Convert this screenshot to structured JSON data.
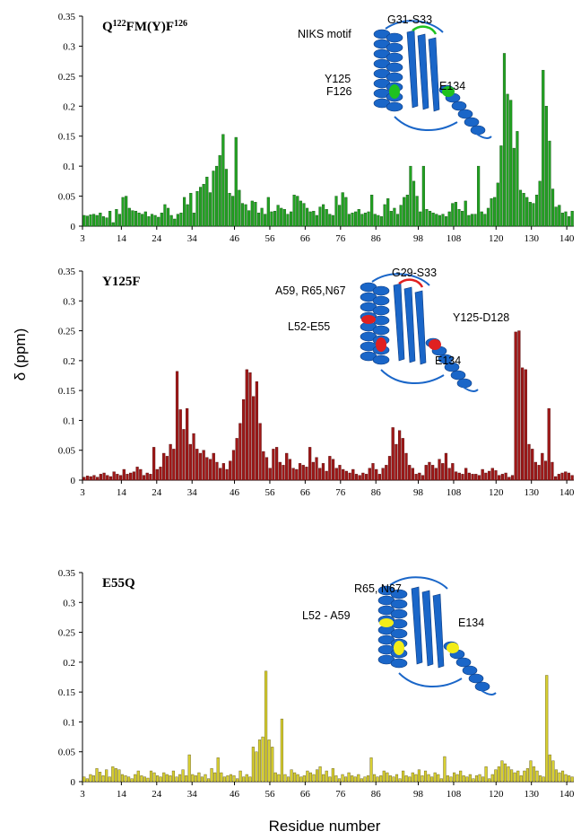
{
  "chart_data": {
    "ylabel": "δ (ppm)",
    "xlabel": "Residue number",
    "y_ticks": [
      "0",
      "0.05",
      "0.1",
      "0.15",
      "0.2",
      "0.25",
      "0.3",
      "0.35"
    ],
    "x_ticks": [
      "3",
      "14",
      "24",
      "34",
      "46",
      "56",
      "66",
      "76",
      "86",
      "98",
      "108",
      "120",
      "130",
      "140"
    ],
    "panels": [
      {
        "type": "bar",
        "title_main": "Q",
        "title_sup1": "122",
        "title_mid": "FM(Y)F",
        "title_sup2": "126",
        "color": "#22a322",
        "edge": "#0f4f0f",
        "x_range": [
          3,
          142
        ],
        "ylim": [
          0,
          0.35
        ],
        "annotations": [
          "NIKS motif",
          "G31-S33",
          "Y125",
          "F126",
          "E134"
        ],
        "values": [
          0.018,
          0.017,
          0.019,
          0.02,
          0.018,
          0.022,
          0.016,
          0.014,
          0.025,
          0.006,
          0.028,
          0.02,
          0.048,
          0.05,
          0.03,
          0.026,
          0.025,
          0.022,
          0.02,
          0.024,
          0.016,
          0.02,
          0.018,
          0.015,
          0.022,
          0.036,
          0.03,
          0.018,
          0.012,
          0.02,
          0.022,
          0.048,
          0.036,
          0.055,
          0.022,
          0.058,
          0.065,
          0.07,
          0.082,
          0.056,
          0.092,
          0.1,
          0.118,
          0.153,
          0.095,
          0.055,
          0.05,
          0.148,
          0.06,
          0.038,
          0.036,
          0.026,
          0.042,
          0.04,
          0.022,
          0.03,
          0.02,
          0.048,
          0.024,
          0.025,
          0.035,
          0.03,
          0.028,
          0.02,
          0.024,
          0.052,
          0.05,
          0.042,
          0.038,
          0.03,
          0.024,
          0.025,
          0.018,
          0.032,
          0.036,
          0.028,
          0.02,
          0.018,
          0.05,
          0.035,
          0.056,
          0.048,
          0.02,
          0.022,
          0.024,
          0.028,
          0.02,
          0.022,
          0.024,
          0.052,
          0.02,
          0.018,
          0.016,
          0.036,
          0.046,
          0.025,
          0.03,
          0.02,
          0.035,
          0.048,
          0.052,
          0.1,
          0.075,
          0.05,
          0.024,
          0.1,
          0.028,
          0.025,
          0.022,
          0.02,
          0.018,
          0.02,
          0.016,
          0.024,
          0.038,
          0.04,
          0.028,
          0.025,
          0.042,
          0.018,
          0.02,
          0.02,
          0.1,
          0.024,
          0.02,
          0.03,
          0.046,
          0.048,
          0.072,
          0.134,
          0.288,
          0.22,
          0.21,
          0.13,
          0.158,
          0.06,
          0.055,
          0.048,
          0.04,
          0.038,
          0.052,
          0.075,
          0.26,
          0.2,
          0.142,
          0.062,
          0.032,
          0.035,
          0.022,
          0.024,
          0.016,
          0.025
        ]
      },
      {
        "type": "bar",
        "title_main": "Y125F",
        "title_sup1": "",
        "title_mid": "",
        "title_sup2": "",
        "color": "#a01818",
        "edge": "#4d0808",
        "x_range": [
          3,
          142
        ],
        "ylim": [
          0,
          0.35
        ],
        "annotations": [
          "A59, R65,N67",
          "G29-S33",
          "L52-E55",
          "Y125-D128",
          "E134"
        ],
        "values": [
          0.005,
          0.007,
          0.006,
          0.008,
          0.005,
          0.01,
          0.012,
          0.008,
          0.006,
          0.014,
          0.01,
          0.008,
          0.018,
          0.01,
          0.012,
          0.014,
          0.022,
          0.018,
          0.008,
          0.012,
          0.01,
          0.055,
          0.018,
          0.022,
          0.045,
          0.04,
          0.06,
          0.052,
          0.182,
          0.118,
          0.085,
          0.12,
          0.06,
          0.078,
          0.052,
          0.045,
          0.05,
          0.038,
          0.035,
          0.045,
          0.03,
          0.02,
          0.028,
          0.018,
          0.032,
          0.05,
          0.07,
          0.095,
          0.135,
          0.185,
          0.18,
          0.14,
          0.165,
          0.095,
          0.048,
          0.038,
          0.02,
          0.052,
          0.055,
          0.03,
          0.025,
          0.045,
          0.035,
          0.02,
          0.018,
          0.028,
          0.025,
          0.022,
          0.055,
          0.03,
          0.038,
          0.02,
          0.028,
          0.015,
          0.04,
          0.035,
          0.02,
          0.025,
          0.018,
          0.015,
          0.012,
          0.018,
          0.01,
          0.008,
          0.012,
          0.01,
          0.02,
          0.028,
          0.018,
          0.01,
          0.02,
          0.025,
          0.04,
          0.088,
          0.06,
          0.083,
          0.07,
          0.045,
          0.025,
          0.02,
          0.01,
          0.012,
          0.008,
          0.025,
          0.03,
          0.025,
          0.02,
          0.035,
          0.028,
          0.045,
          0.02,
          0.028,
          0.014,
          0.012,
          0.01,
          0.02,
          0.012,
          0.01,
          0.01,
          0.008,
          0.018,
          0.012,
          0.015,
          0.02,
          0.016,
          0.008,
          0.01,
          0.012,
          0.005,
          0.008,
          0.248,
          0.25,
          0.188,
          0.185,
          0.06,
          0.052,
          0.03,
          0.025,
          0.045,
          0.032,
          0.12,
          0.03,
          0.006,
          0.01,
          0.012,
          0.014,
          0.012,
          0.008
        ]
      },
      {
        "type": "bar",
        "title_main": "E55Q",
        "title_sup1": "",
        "title_mid": "",
        "title_sup2": "",
        "color": "#d8d030",
        "edge": "#5a5010",
        "x_range": [
          3,
          142
        ],
        "ylim": [
          0,
          0.35
        ],
        "annotations": [
          "R65, N67",
          "L52 - A59",
          "E134"
        ],
        "values": [
          0.008,
          0.005,
          0.012,
          0.01,
          0.022,
          0.016,
          0.01,
          0.02,
          0.008,
          0.025,
          0.022,
          0.02,
          0.012,
          0.01,
          0.008,
          0.005,
          0.012,
          0.018,
          0.01,
          0.008,
          0.006,
          0.018,
          0.015,
          0.01,
          0.008,
          0.015,
          0.012,
          0.01,
          0.018,
          0.008,
          0.012,
          0.02,
          0.01,
          0.045,
          0.012,
          0.01,
          0.015,
          0.008,
          0.012,
          0.005,
          0.022,
          0.015,
          0.04,
          0.015,
          0.008,
          0.01,
          0.012,
          0.01,
          0.005,
          0.018,
          0.008,
          0.012,
          0.008,
          0.058,
          0.05,
          0.07,
          0.075,
          0.185,
          0.07,
          0.058,
          0.015,
          0.012,
          0.105,
          0.012,
          0.008,
          0.02,
          0.015,
          0.012,
          0.008,
          0.01,
          0.018,
          0.015,
          0.012,
          0.02,
          0.025,
          0.012,
          0.018,
          0.008,
          0.022,
          0.01,
          0.005,
          0.012,
          0.008,
          0.015,
          0.01,
          0.008,
          0.012,
          0.005,
          0.008,
          0.01,
          0.04,
          0.012,
          0.008,
          0.01,
          0.018,
          0.015,
          0.01,
          0.008,
          0.012,
          0.005,
          0.018,
          0.01,
          0.008,
          0.015,
          0.012,
          0.02,
          0.01,
          0.018,
          0.012,
          0.008,
          0.015,
          0.012,
          0.005,
          0.042,
          0.01,
          0.008,
          0.015,
          0.012,
          0.018,
          0.01,
          0.008,
          0.012,
          0.005,
          0.01,
          0.012,
          0.008,
          0.025,
          0.005,
          0.012,
          0.02,
          0.025,
          0.035,
          0.03,
          0.025,
          0.02,
          0.015,
          0.018,
          0.01,
          0.018,
          0.022,
          0.035,
          0.025,
          0.018,
          0.01,
          0.008,
          0.178,
          0.045,
          0.035,
          0.02,
          0.015,
          0.018,
          0.012,
          0.01,
          0.008
        ]
      }
    ]
  }
}
